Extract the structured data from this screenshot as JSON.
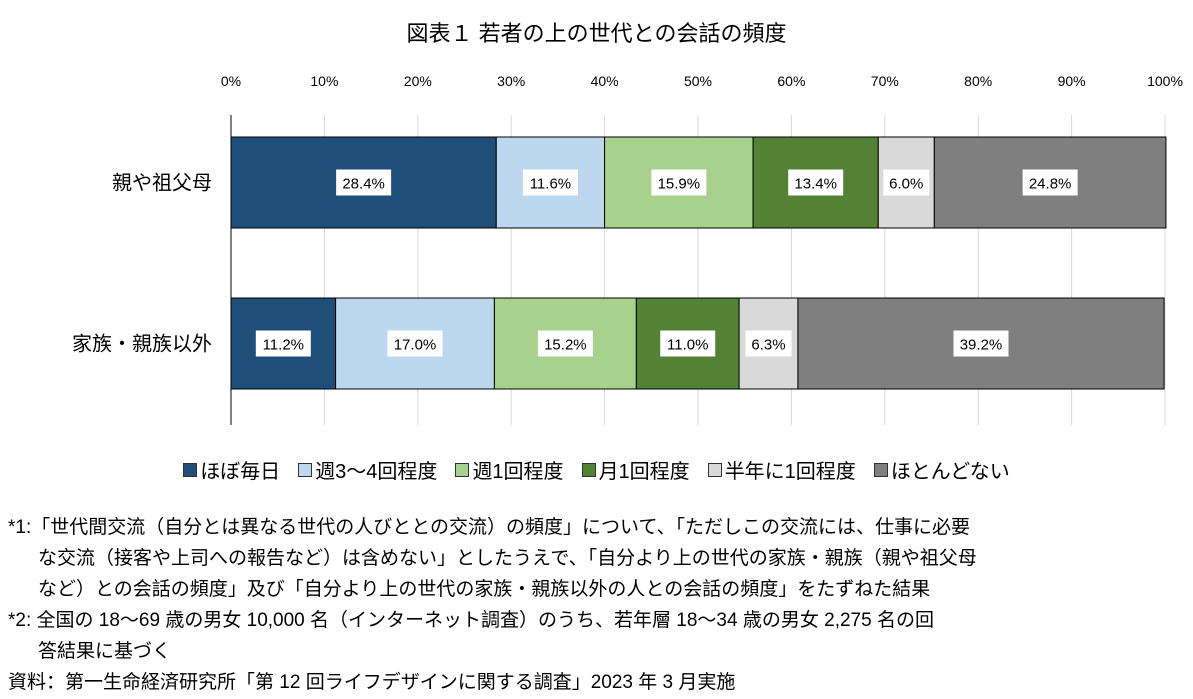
{
  "chart_data": {
    "type": "bar",
    "stacked": true,
    "orientation": "horizontal",
    "title": "図表１ 若者の上の世代との会話の頻度",
    "xlim": [
      0,
      100
    ],
    "xticks": [
      "0%",
      "10%",
      "20%",
      "30%",
      "40%",
      "50%",
      "60%",
      "70%",
      "80%",
      "90%",
      "100%"
    ],
    "categories": [
      "親や祖父母",
      "家族・親族以外"
    ],
    "series": [
      {
        "name": "ほぼ毎日",
        "color": "#1f4e79",
        "values": [
          28.4,
          11.2
        ]
      },
      {
        "name": "週3～4回程度",
        "color": "#bdd7ee",
        "values": [
          11.6,
          17.0
        ]
      },
      {
        "name": "週1回程度",
        "color": "#a9d18e",
        "values": [
          15.9,
          15.2
        ]
      },
      {
        "name": "月1回程度",
        "color": "#548235",
        "values": [
          13.4,
          11.0
        ]
      },
      {
        "name": "半年に1回程度",
        "color": "#d9d9d9",
        "values": [
          6.0,
          6.3
        ]
      },
      {
        "name": "ほとんどない",
        "color": "#7f7f7f",
        "values": [
          24.8,
          39.2
        ]
      }
    ],
    "legend": "bottom"
  },
  "notes": [
    "*1:「世代間交流（自分とは異なる世代の人びととの交流）の頻度」について、「ただしこの交流には、仕事に必要",
    "な交流（接客や上司への報告など）は含めない」としたうえで、「自分より上の世代の家族・親族（親や祖父母",
    "など）との会話の頻度」及び「自分より上の世代の家族・親族以外の人との会話の頻度」をたずねた結果",
    "*2: 全国の 18～69 歳の男女 10,000 名（インターネット調査）のうち、若年層 18～34 歳の男女 2,275 名の回",
    "答結果に基づく",
    "資料：第一生命経済研究所「第 12 回ライフデザインに関する調査」2023 年 3 月実施"
  ]
}
